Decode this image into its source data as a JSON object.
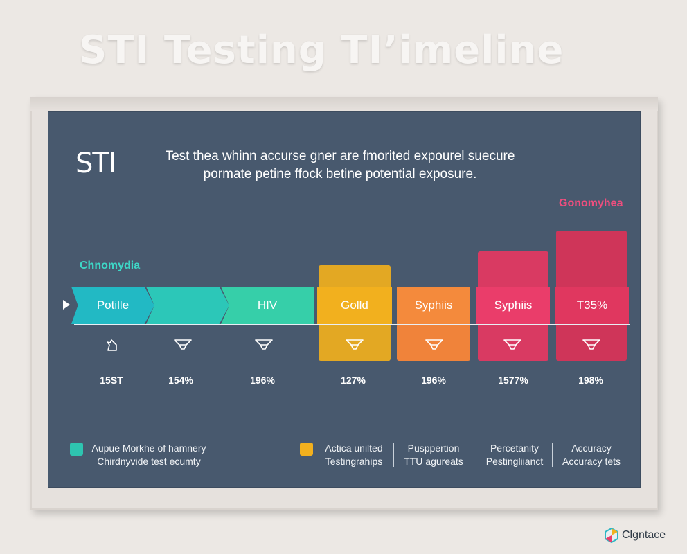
{
  "title": "STI Testing TI’imeline",
  "board": {
    "heading": "STI",
    "description_line1": "Test thea whinn accurse gner are fmorited expourel suecure",
    "description_line2": "pormate petine ffock betine potential exposure."
  },
  "labels": {
    "chlamydia": "Chnomydia",
    "gonorrhea": "Gonomyhea"
  },
  "stages": [
    {
      "label": "Potille",
      "percent": "15ST",
      "color": "#22b9c4"
    },
    {
      "label": "",
      "percent": "154%",
      "color": "#2cc7b8"
    },
    {
      "label": "HIV",
      "percent": "196%",
      "color": "#36cfa9"
    },
    {
      "label": "Golld",
      "percent": "127%",
      "color": "#f2b01e"
    },
    {
      "label": "Syphiis",
      "percent": "196%",
      "color": "#f48a3c"
    },
    {
      "label": "Syphiis",
      "percent": "1577%",
      "color": "#ea3d6a"
    },
    {
      "label": "T35%",
      "percent": "198%",
      "color": "#e0375f"
    }
  ],
  "legend": {
    "teal_color": "#2ec4b0",
    "yellow_color": "#f2b01e",
    "item1_line1": "Aupue Morkhe of hamnery",
    "item1_line2": "Chirdnyvide test ecumty",
    "item2_line1": "Actica unilted",
    "item2_line2": "Testingrahips",
    "item3_line1": "Pusppertion",
    "item3_line2": "TTU agureats",
    "item4_line1": "Percetanity",
    "item4_line2": "Pestingliianct",
    "item5_line1": "Accuracy",
    "item5_line2": "Accuracy tets"
  },
  "brand": {
    "name": "Clgntace"
  },
  "icons": {
    "pointer": "play-icon",
    "first_marker": "hand-pointer-icon",
    "markers": "funnel-icon"
  }
}
